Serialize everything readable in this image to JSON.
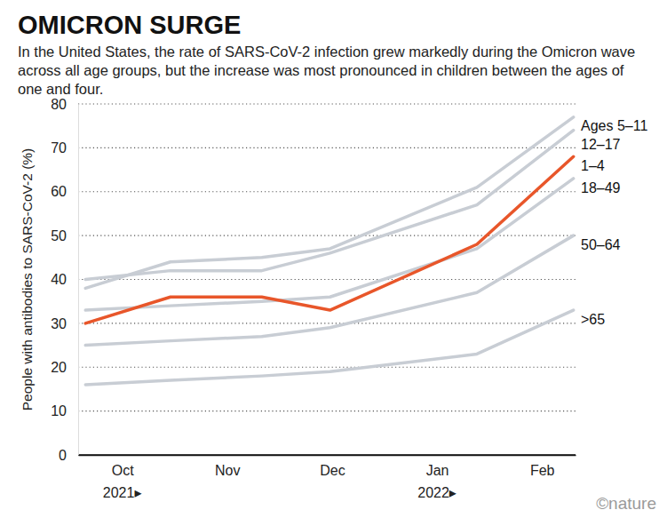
{
  "chart_data": {
    "type": "line",
    "title": "OMICRON SURGE",
    "subtitle": "In the United States, the rate of SARS-CoV-2 infection grew markedly during the Omicron wave across all age groups, but the increase was most pronounced in children between the ages of one and four.",
    "y_label": "People with antibodies to SARS-CoV-2 (%)",
    "x": [
      9.65,
      10.46,
      11.33,
      11.98,
      13.38,
      14.3
    ],
    "xlim": [
      9.58,
      14.32
    ],
    "xticks": [
      {
        "value": 10,
        "label": "Oct"
      },
      {
        "value": 11,
        "label": "Nov"
      },
      {
        "value": 12,
        "label": "Dec"
      },
      {
        "value": 13,
        "label": "Jan"
      },
      {
        "value": 14,
        "label": "Feb"
      }
    ],
    "annotations": [
      {
        "text": "2021▸",
        "x": 10
      },
      {
        "text": "2022▸",
        "x": 13
      }
    ],
    "ylim": [
      0,
      80
    ],
    "yticks": [
      0,
      10,
      20,
      30,
      40,
      50,
      60,
      70,
      80
    ],
    "grid": true,
    "series": [
      {
        "name": "Ages 5–11",
        "color": "#c8cdd4",
        "values": [
          38,
          44,
          45,
          47,
          61,
          77
        ]
      },
      {
        "name": "12–17",
        "color": "#c8cdd4",
        "values": [
          40,
          42,
          42,
          46,
          57,
          74
        ]
      },
      {
        "name": "18–49",
        "color": "#c8cdd4",
        "values": [
          33,
          34,
          35,
          36,
          47,
          63
        ]
      },
      {
        "name": "50–64",
        "color": "#c8cdd4",
        "values": [
          25,
          26,
          27,
          29,
          37,
          50
        ]
      },
      {
        "name": ">65",
        "color": "#c8cdd4",
        "values": [
          16,
          17,
          18,
          19,
          23,
          33
        ]
      },
      {
        "name": "1–4",
        "color": "#e8562a",
        "values": [
          30,
          36,
          36,
          33,
          48,
          68
        ]
      }
    ],
    "source": "©nature"
  }
}
